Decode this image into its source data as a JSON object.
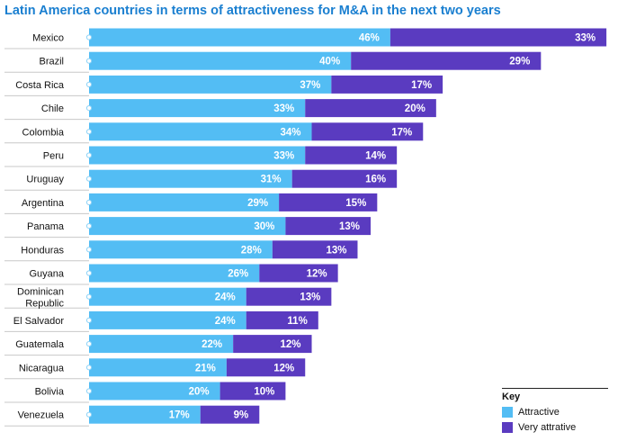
{
  "colors": {
    "attractive": "#53bdf4",
    "very_attractive": "#5a3bc0",
    "title": "#1a7fd0",
    "separator": "#c8c8c8"
  },
  "chart_data": {
    "type": "bar",
    "orientation": "horizontal",
    "stacked": true,
    "title": "Latin America countries in terms of attractiveness for M&A in the next two years",
    "categories": [
      "Mexico",
      "Brazil",
      "Costa Rica",
      "Chile",
      "Colombia",
      "Peru",
      "Uruguay",
      "Argentina",
      "Panama",
      "Honduras",
      "Guyana",
      "Dominican Republic",
      "El Salvador",
      "Guatemala",
      "Nicaragua",
      "Bolivia",
      "Venezuela"
    ],
    "category_lines": [
      [
        "Mexico"
      ],
      [
        "Brazil"
      ],
      [
        "Costa Rica"
      ],
      [
        "Chile"
      ],
      [
        "Colombia"
      ],
      [
        "Peru"
      ],
      [
        "Uruguay"
      ],
      [
        "Argentina"
      ],
      [
        "Panama"
      ],
      [
        "Honduras"
      ],
      [
        "Guyana"
      ],
      [
        "Dominican",
        "Republic"
      ],
      [
        "El Salvador"
      ],
      [
        "Guatemala"
      ],
      [
        "Nicaragua"
      ],
      [
        "Bolivia"
      ],
      [
        "Venezuela"
      ]
    ],
    "series": [
      {
        "name": "Attractive",
        "values": [
          46,
          40,
          37,
          33,
          34,
          33,
          31,
          29,
          30,
          28,
          26,
          24,
          24,
          22,
          21,
          20,
          17
        ]
      },
      {
        "name": "Very attrative",
        "values": [
          33,
          29,
          17,
          20,
          17,
          14,
          16,
          15,
          13,
          13,
          12,
          13,
          11,
          12,
          12,
          10,
          9
        ]
      }
    ],
    "value_suffix": "%",
    "xlim": [
      0,
      80
    ],
    "grid": false,
    "legend": {
      "title": "Key",
      "position": "bottom-right"
    }
  }
}
